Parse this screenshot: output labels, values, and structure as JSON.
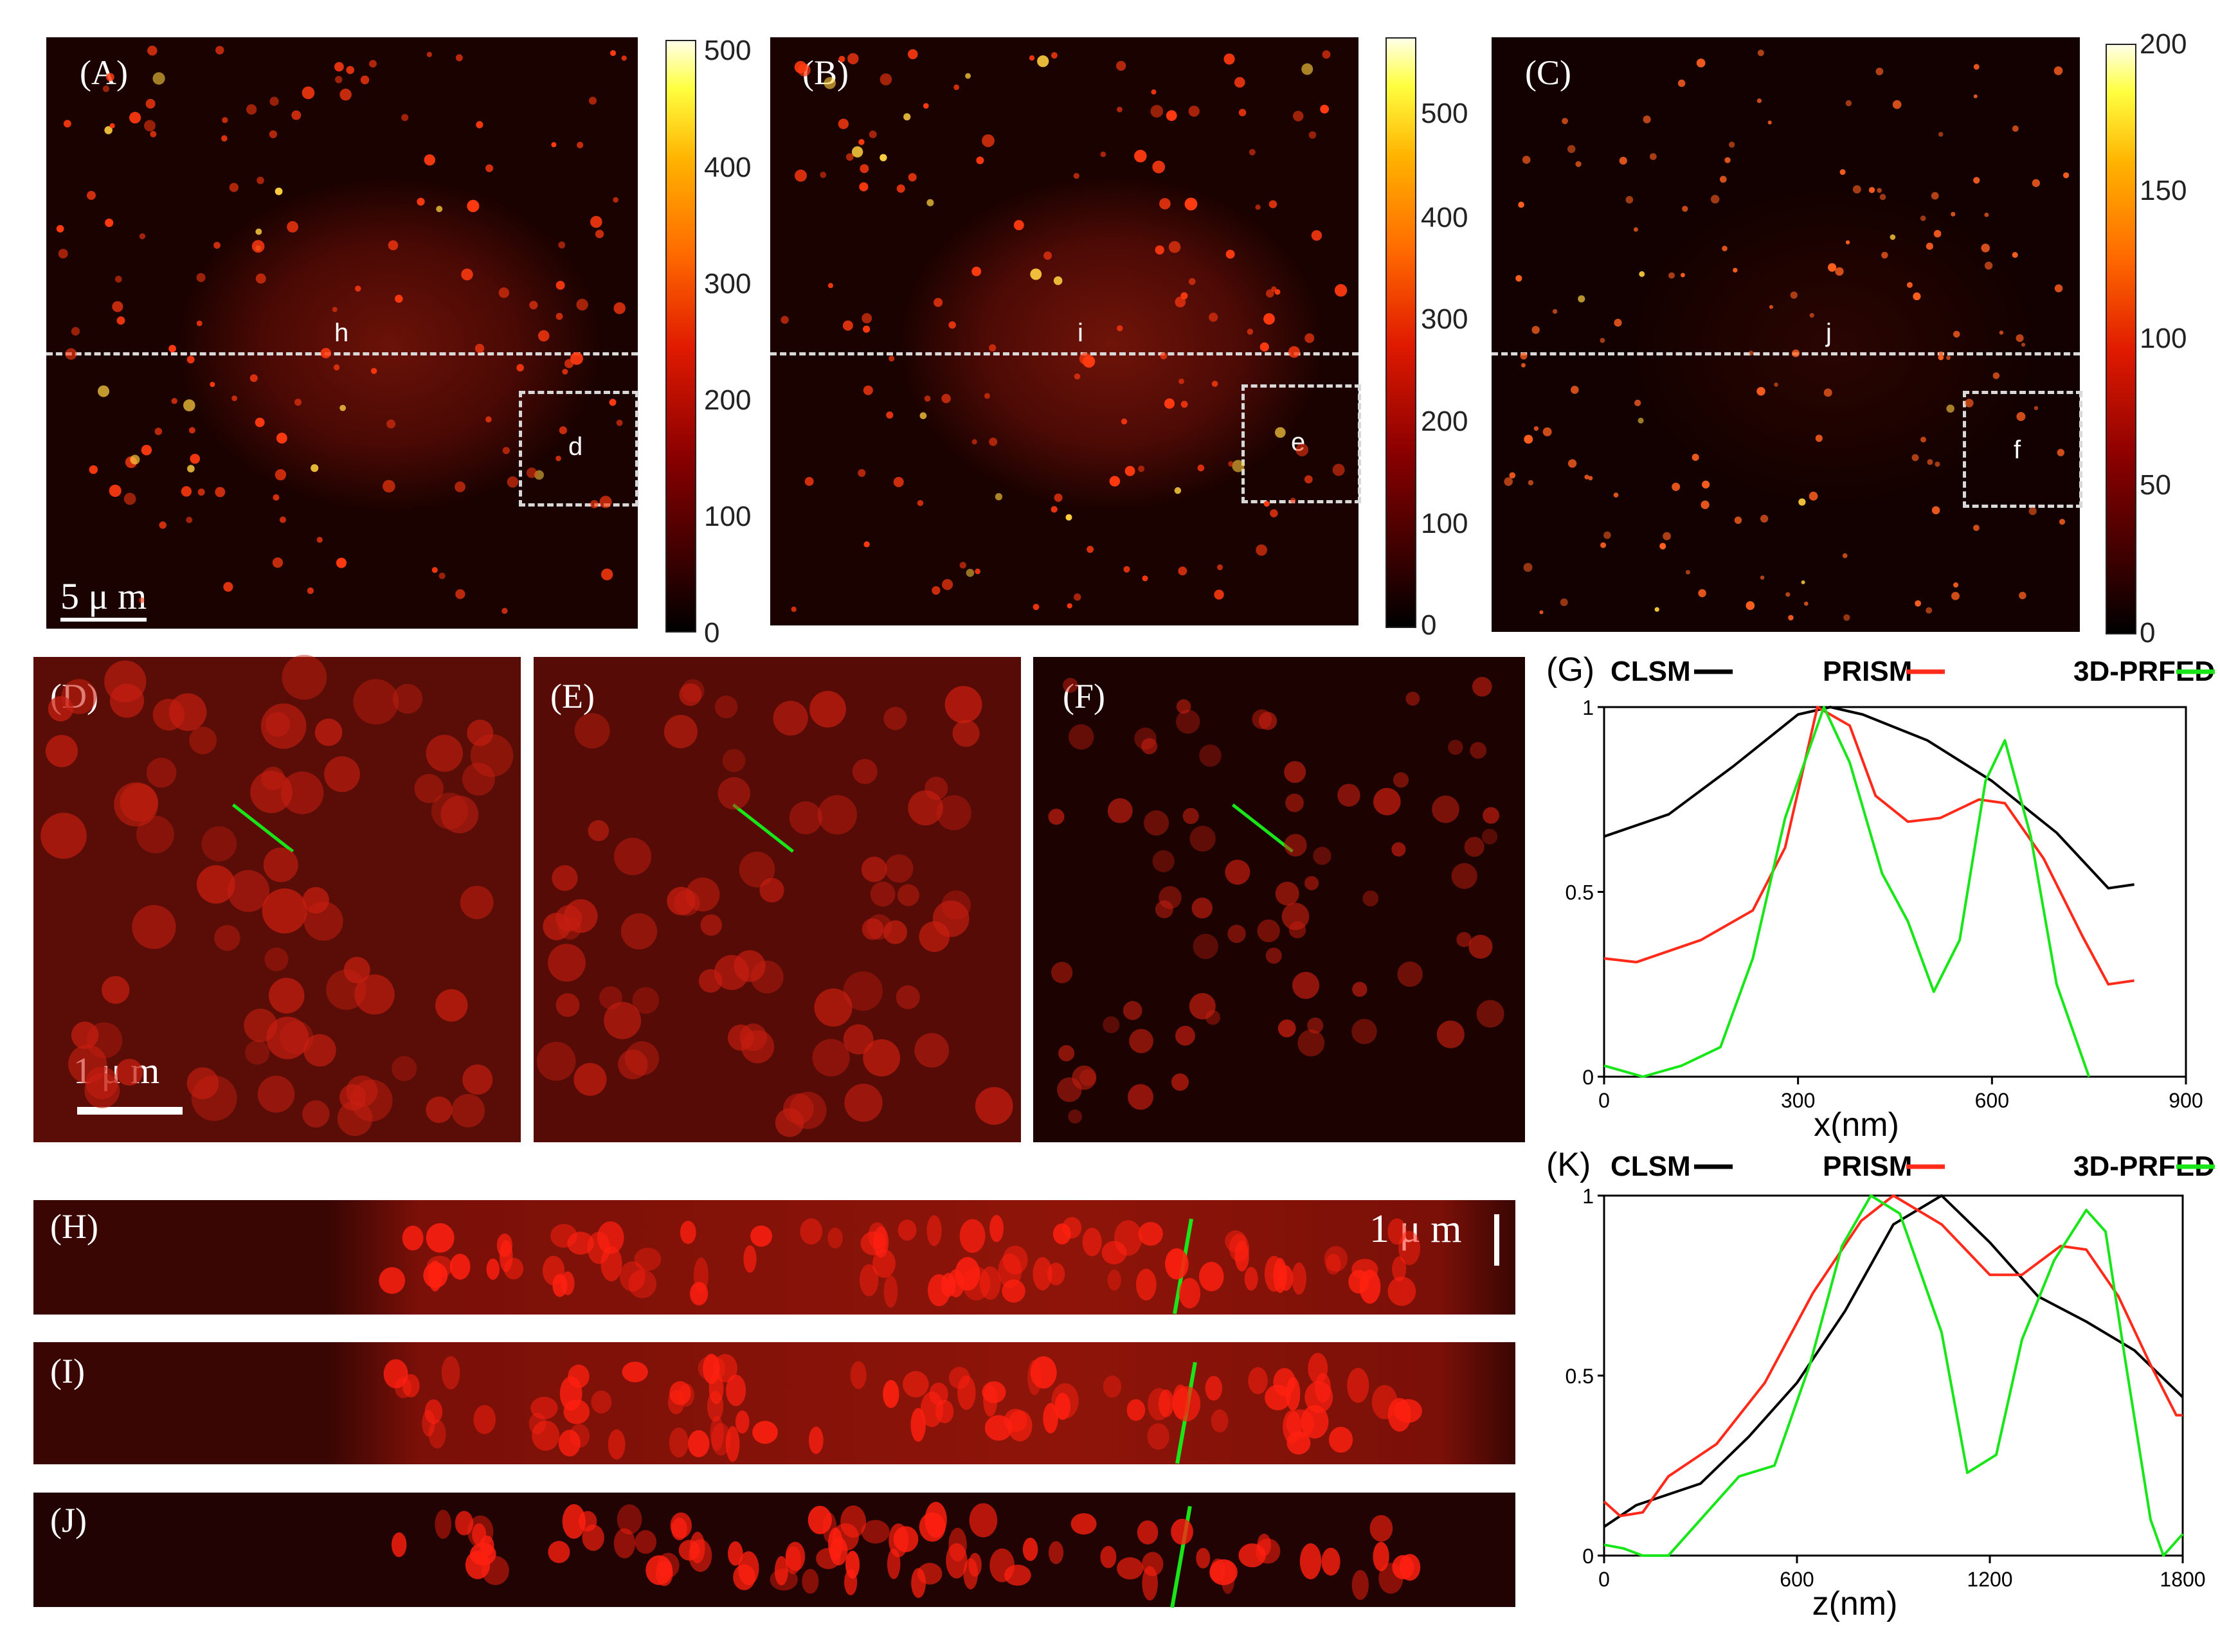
{
  "top_panels": [
    {
      "label": "(A)",
      "line_label": "h",
      "box_label": "d",
      "colorbar_ticks": [
        "500",
        "400",
        "300",
        "200",
        "100",
        "0"
      ]
    },
    {
      "label": "(B)",
      "line_label": "i",
      "box_label": "e",
      "colorbar_ticks": [
        "500",
        "400",
        "300",
        "200",
        "100",
        "0"
      ]
    },
    {
      "label": "(C)",
      "line_label": "j",
      "box_label": "f",
      "colorbar_ticks": [
        "200",
        "150",
        "100",
        "50",
        "0"
      ]
    }
  ],
  "scalebar_top": "5 μ m",
  "zoom_panels": [
    {
      "label": "(D)"
    },
    {
      "label": "(E)"
    },
    {
      "label": "(F)"
    }
  ],
  "scalebar_zoom": "1 μ m",
  "xz_panels": [
    {
      "label": "(H)"
    },
    {
      "label": "(I)"
    },
    {
      "label": "(J)"
    }
  ],
  "scalebar_xz": "1 μ m",
  "legend_labels": [
    "CLSM",
    "PRISM",
    "3D-PRFED"
  ],
  "colors": {
    "clsm": "#000000",
    "prism": "#ff2a1a",
    "prfed": "#19e619"
  },
  "chart_data": [
    {
      "type": "line",
      "label": "(G)",
      "xlabel": "x(nm)",
      "xlim": [
        0,
        900
      ],
      "ylim": [
        0,
        1
      ],
      "x_ticks": [
        "0",
        "300",
        "600",
        "900"
      ],
      "y_ticks": [
        "0",
        "0.5",
        "1"
      ],
      "series": [
        {
          "name": "CLSM",
          "points": [
            [
              0,
              0.65
            ],
            [
              100,
              0.71
            ],
            [
              200,
              0.84
            ],
            [
              300,
              0.98
            ],
            [
              350,
              1.0
            ],
            [
              400,
              0.98
            ],
            [
              500,
              0.91
            ],
            [
              600,
              0.8
            ],
            [
              700,
              0.66
            ],
            [
              780,
              0.51
            ],
            [
              820,
              0.52
            ]
          ]
        },
        {
          "name": "PRISM",
          "points": [
            [
              0,
              0.32
            ],
            [
              50,
              0.31
            ],
            [
              150,
              0.37
            ],
            [
              230,
              0.45
            ],
            [
              280,
              0.62
            ],
            [
              330,
              1.0
            ],
            [
              380,
              0.95
            ],
            [
              420,
              0.76
            ],
            [
              470,
              0.69
            ],
            [
              520,
              0.7
            ],
            [
              580,
              0.75
            ],
            [
              620,
              0.74
            ],
            [
              680,
              0.59
            ],
            [
              740,
              0.38
            ],
            [
              780,
              0.25
            ],
            [
              820,
              0.26
            ]
          ]
        },
        {
          "name": "3D-PRFED",
          "points": [
            [
              0,
              0.03
            ],
            [
              60,
              0.0
            ],
            [
              120,
              0.03
            ],
            [
              180,
              0.08
            ],
            [
              230,
              0.32
            ],
            [
              280,
              0.7
            ],
            [
              340,
              1.0
            ],
            [
              380,
              0.85
            ],
            [
              430,
              0.55
            ],
            [
              470,
              0.42
            ],
            [
              510,
              0.23
            ],
            [
              550,
              0.37
            ],
            [
              590,
              0.8
            ],
            [
              620,
              0.91
            ],
            [
              660,
              0.65
            ],
            [
              700,
              0.25
            ],
            [
              750,
              0.0
            ]
          ]
        }
      ]
    },
    {
      "type": "line",
      "label": "(K)",
      "xlabel": "z(nm)",
      "xlim": [
        0,
        1800
      ],
      "ylim": [
        0,
        1
      ],
      "x_ticks": [
        "0",
        "600",
        "1200",
        "1800"
      ],
      "y_ticks": [
        "0",
        "0.5",
        "1"
      ],
      "series": [
        {
          "name": "CLSM",
          "points": [
            [
              0,
              0.08
            ],
            [
              100,
              0.14
            ],
            [
              300,
              0.2
            ],
            [
              450,
              0.33
            ],
            [
              600,
              0.48
            ],
            [
              750,
              0.68
            ],
            [
              900,
              0.92
            ],
            [
              1050,
              1.0
            ],
            [
              1200,
              0.87
            ],
            [
              1350,
              0.72
            ],
            [
              1500,
              0.65
            ],
            [
              1650,
              0.57
            ],
            [
              1800,
              0.44
            ]
          ]
        },
        {
          "name": "PRISM",
          "points": [
            [
              0,
              0.15
            ],
            [
              50,
              0.11
            ],
            [
              120,
              0.12
            ],
            [
              200,
              0.22
            ],
            [
              350,
              0.31
            ],
            [
              500,
              0.48
            ],
            [
              650,
              0.73
            ],
            [
              800,
              0.93
            ],
            [
              900,
              1.0
            ],
            [
              1050,
              0.92
            ],
            [
              1200,
              0.78
            ],
            [
              1300,
              0.78
            ],
            [
              1420,
              0.86
            ],
            [
              1500,
              0.85
            ],
            [
              1600,
              0.72
            ],
            [
              1700,
              0.53
            ],
            [
              1780,
              0.39
            ],
            [
              1800,
              0.39
            ]
          ]
        },
        {
          "name": "3D-PRFED",
          "points": [
            [
              0,
              0.03
            ],
            [
              60,
              0.02
            ],
            [
              120,
              0.0
            ],
            [
              200,
              0.0
            ],
            [
              300,
              0.1
            ],
            [
              420,
              0.22
            ],
            [
              530,
              0.25
            ],
            [
              640,
              0.53
            ],
            [
              740,
              0.86
            ],
            [
              830,
              1.0
            ],
            [
              920,
              0.95
            ],
            [
              1050,
              0.62
            ],
            [
              1130,
              0.23
            ],
            [
              1220,
              0.28
            ],
            [
              1300,
              0.6
            ],
            [
              1400,
              0.82
            ],
            [
              1500,
              0.96
            ],
            [
              1560,
              0.9
            ],
            [
              1620,
              0.55
            ],
            [
              1700,
              0.1
            ],
            [
              1740,
              0.0
            ],
            [
              1800,
              0.06
            ]
          ]
        }
      ]
    }
  ]
}
